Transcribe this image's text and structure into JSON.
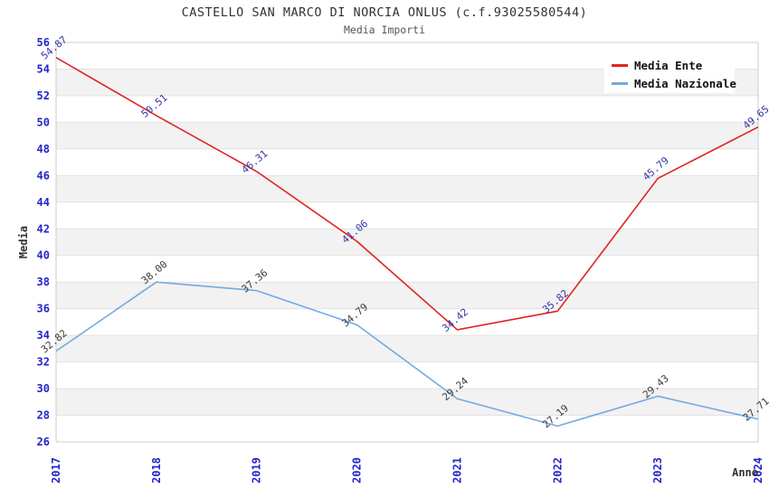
{
  "chart_data": {
    "type": "line",
    "title": "CASTELLO SAN MARCO DI NORCIA ONLUS (c.f.93025580544)",
    "subtitle": "Media Importi",
    "xlabel": "Anno",
    "ylabel": "Media",
    "x": [
      "2017",
      "2018",
      "2019",
      "2020",
      "2021",
      "2022",
      "2023",
      "2024"
    ],
    "ylim": [
      26,
      56
    ],
    "ytick_step": 2,
    "grid": true,
    "legend_position": "top-right",
    "series": [
      {
        "name": "Media Nazionale",
        "color": "#74AADF",
        "label_color": "#3C3C3C",
        "values": [
          32.82,
          38.0,
          37.36,
          34.79,
          29.24,
          27.19,
          29.43,
          27.71
        ],
        "labels": [
          "32.82",
          "38.00",
          "37.36",
          "34.79",
          "29.24",
          "27.19",
          "29.43",
          "27.71"
        ]
      },
      {
        "name": "Media Ente",
        "color": "#E02222",
        "label_color": "#3434A4",
        "values": [
          54.87,
          50.51,
          46.31,
          41.06,
          34.42,
          35.82,
          45.79,
          49.65
        ],
        "labels": [
          "54.87",
          "50.51",
          "46.31",
          "41.06",
          "34.42",
          "35.82",
          "45.79",
          "49.65"
        ]
      }
    ],
    "colors": {
      "background": "#FFFFFF",
      "band": "#F2F2F2",
      "gridline": "#E2E2E2",
      "frame": "#CCCCCC",
      "tick_label": "#2424CC",
      "axis_title": "#333333",
      "legend_text": "#111111",
      "legend_box": "#FFFFFF"
    }
  }
}
